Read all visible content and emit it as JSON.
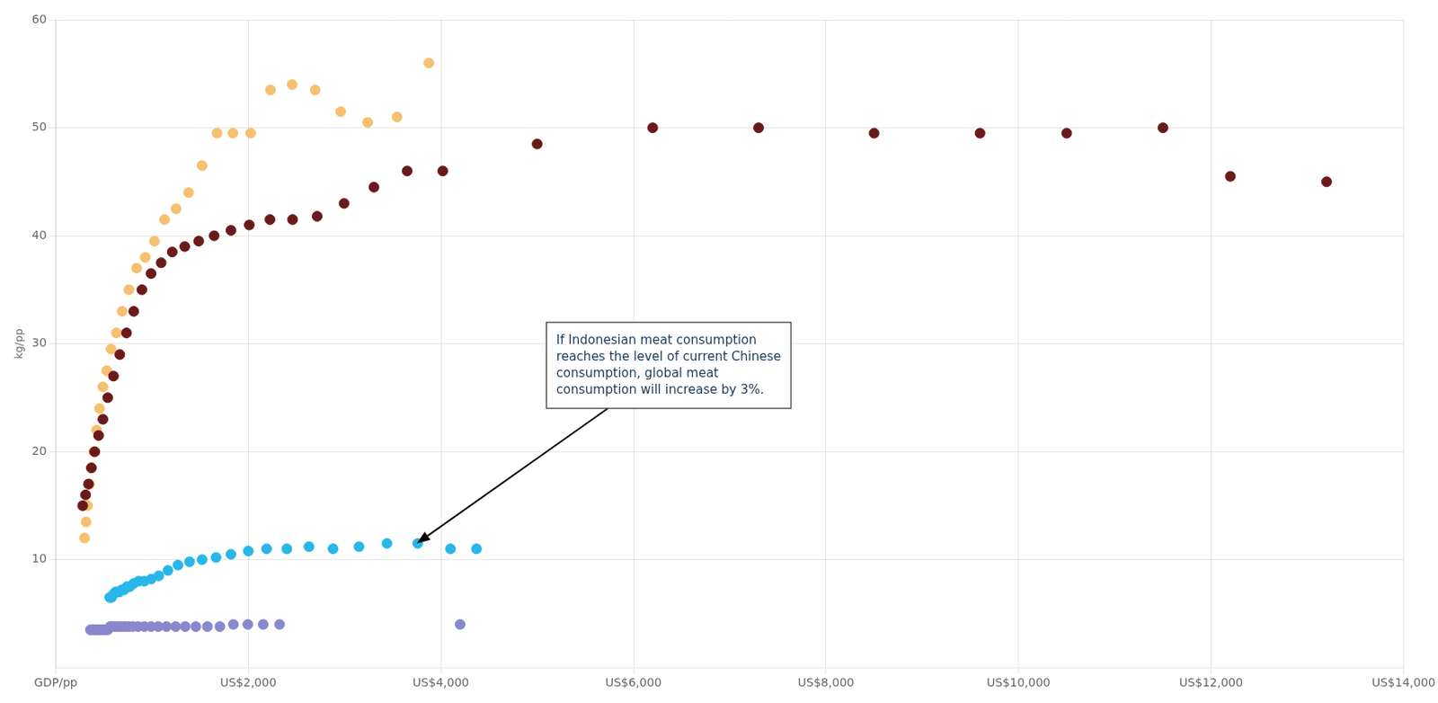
{
  "chart_data": {
    "type": "scatter",
    "ylabel": "kg/pp",
    "xlim": [
      0,
      14000
    ],
    "ylim": [
      0,
      60
    ],
    "xticks": [
      {
        "value": 0,
        "label": "GDP/pp"
      },
      {
        "value": 2000,
        "label": "US$2,000"
      },
      {
        "value": 4000,
        "label": "US$4,000"
      },
      {
        "value": 6000,
        "label": "US$6,000"
      },
      {
        "value": 8000,
        "label": "US$8,000"
      },
      {
        "value": 10000,
        "label": "US$10,000"
      },
      {
        "value": 12000,
        "label": "US$12,000"
      },
      {
        "value": 14000,
        "label": "US$14,000"
      }
    ],
    "yticks": [
      10,
      20,
      30,
      40,
      50,
      60
    ],
    "grid": true,
    "series": [
      {
        "color": "#F5C070",
        "x": [
          300,
          315,
          330,
          350,
          370,
          395,
          425,
          455,
          490,
          530,
          575,
          630,
          690,
          760,
          840,
          930,
          1025,
          1130,
          1250,
          1380,
          1520,
          1675,
          1840,
          2025,
          2230,
          2455,
          2695,
          2960,
          3240,
          3545,
          3875
        ],
        "values": [
          12.0,
          13.5,
          15.0,
          17.0,
          18.5,
          20.0,
          22.0,
          24.0,
          26.0,
          27.5,
          29.5,
          31.0,
          33.0,
          35.0,
          37.0,
          38.0,
          39.5,
          41.5,
          42.5,
          44.0,
          46.5,
          49.5,
          49.5,
          49.5,
          53.5,
          54.0,
          53.5,
          51.5,
          50.5,
          51.0,
          56.0
        ]
      },
      {
        "color": "#6B1A1A",
        "x": [
          280,
          310,
          340,
          370,
          405,
          445,
          490,
          540,
          600,
          665,
          735,
          810,
          895,
          990,
          1095,
          1210,
          1340,
          1485,
          1645,
          1820,
          2010,
          2225,
          2460,
          2715,
          2995,
          3305,
          3650,
          4020,
          5000,
          6200,
          7300,
          8500,
          9600,
          10500,
          11500,
          12200,
          13200
        ],
        "values": [
          15.0,
          16.0,
          17.0,
          18.5,
          20.0,
          21.5,
          23.0,
          25.0,
          27.0,
          29.0,
          31.0,
          33.0,
          35.0,
          36.5,
          37.5,
          38.5,
          39.0,
          39.5,
          40.0,
          40.5,
          41.0,
          41.5,
          41.5,
          41.8,
          43.0,
          44.5,
          46.0,
          46.0,
          48.5,
          50.0,
          50.0,
          49.5,
          49.5,
          49.5,
          50.0,
          45.5,
          45.0
        ]
      },
      {
        "color": "#29B6E8",
        "x": [
          560,
          580,
          600,
          620,
          640,
          660,
          685,
          710,
          740,
          770,
          810,
          860,
          920,
          990,
          1070,
          1165,
          1270,
          1390,
          1520,
          1665,
          1820,
          2000,
          2190,
          2400,
          2630,
          2880,
          3150,
          3440,
          3760,
          4100,
          4370
        ],
        "values": [
          6.5,
          6.5,
          6.8,
          7.0,
          7.0,
          7.0,
          7.2,
          7.2,
          7.5,
          7.5,
          7.8,
          8.0,
          8.0,
          8.2,
          8.5,
          9.0,
          9.5,
          9.8,
          10.0,
          10.2,
          10.5,
          10.8,
          11.0,
          11.0,
          11.2,
          11.0,
          11.2,
          11.5,
          11.5,
          11.0,
          11.0
        ]
      },
      {
        "color": "#8888CC",
        "x": [
          360,
          380,
          400,
          420,
          440,
          460,
          485,
          510,
          540,
          565,
          590,
          620,
          650,
          680,
          715,
          755,
          800,
          855,
          920,
          990,
          1065,
          1150,
          1245,
          1345,
          1455,
          1575,
          1705,
          1845,
          1995,
          2155,
          2325,
          4200
        ],
        "values": [
          3.5,
          3.5,
          3.5,
          3.5,
          3.5,
          3.5,
          3.5,
          3.5,
          3.5,
          3.8,
          3.8,
          3.8,
          3.8,
          3.8,
          3.8,
          3.8,
          3.8,
          3.8,
          3.8,
          3.8,
          3.8,
          3.8,
          3.8,
          3.8,
          3.8,
          3.8,
          3.8,
          4.0,
          4.0,
          4.0,
          4.0,
          4.0
        ]
      }
    ],
    "annotations": [
      {
        "text": "If Indonesian meat consumption\nreaches the level of current Chinese\nconsumption, global meat\nconsumption will increase by 3%.",
        "x": 5200,
        "y": 28,
        "arrow_x": 3750,
        "arrow_y": 11.5
      }
    ]
  }
}
